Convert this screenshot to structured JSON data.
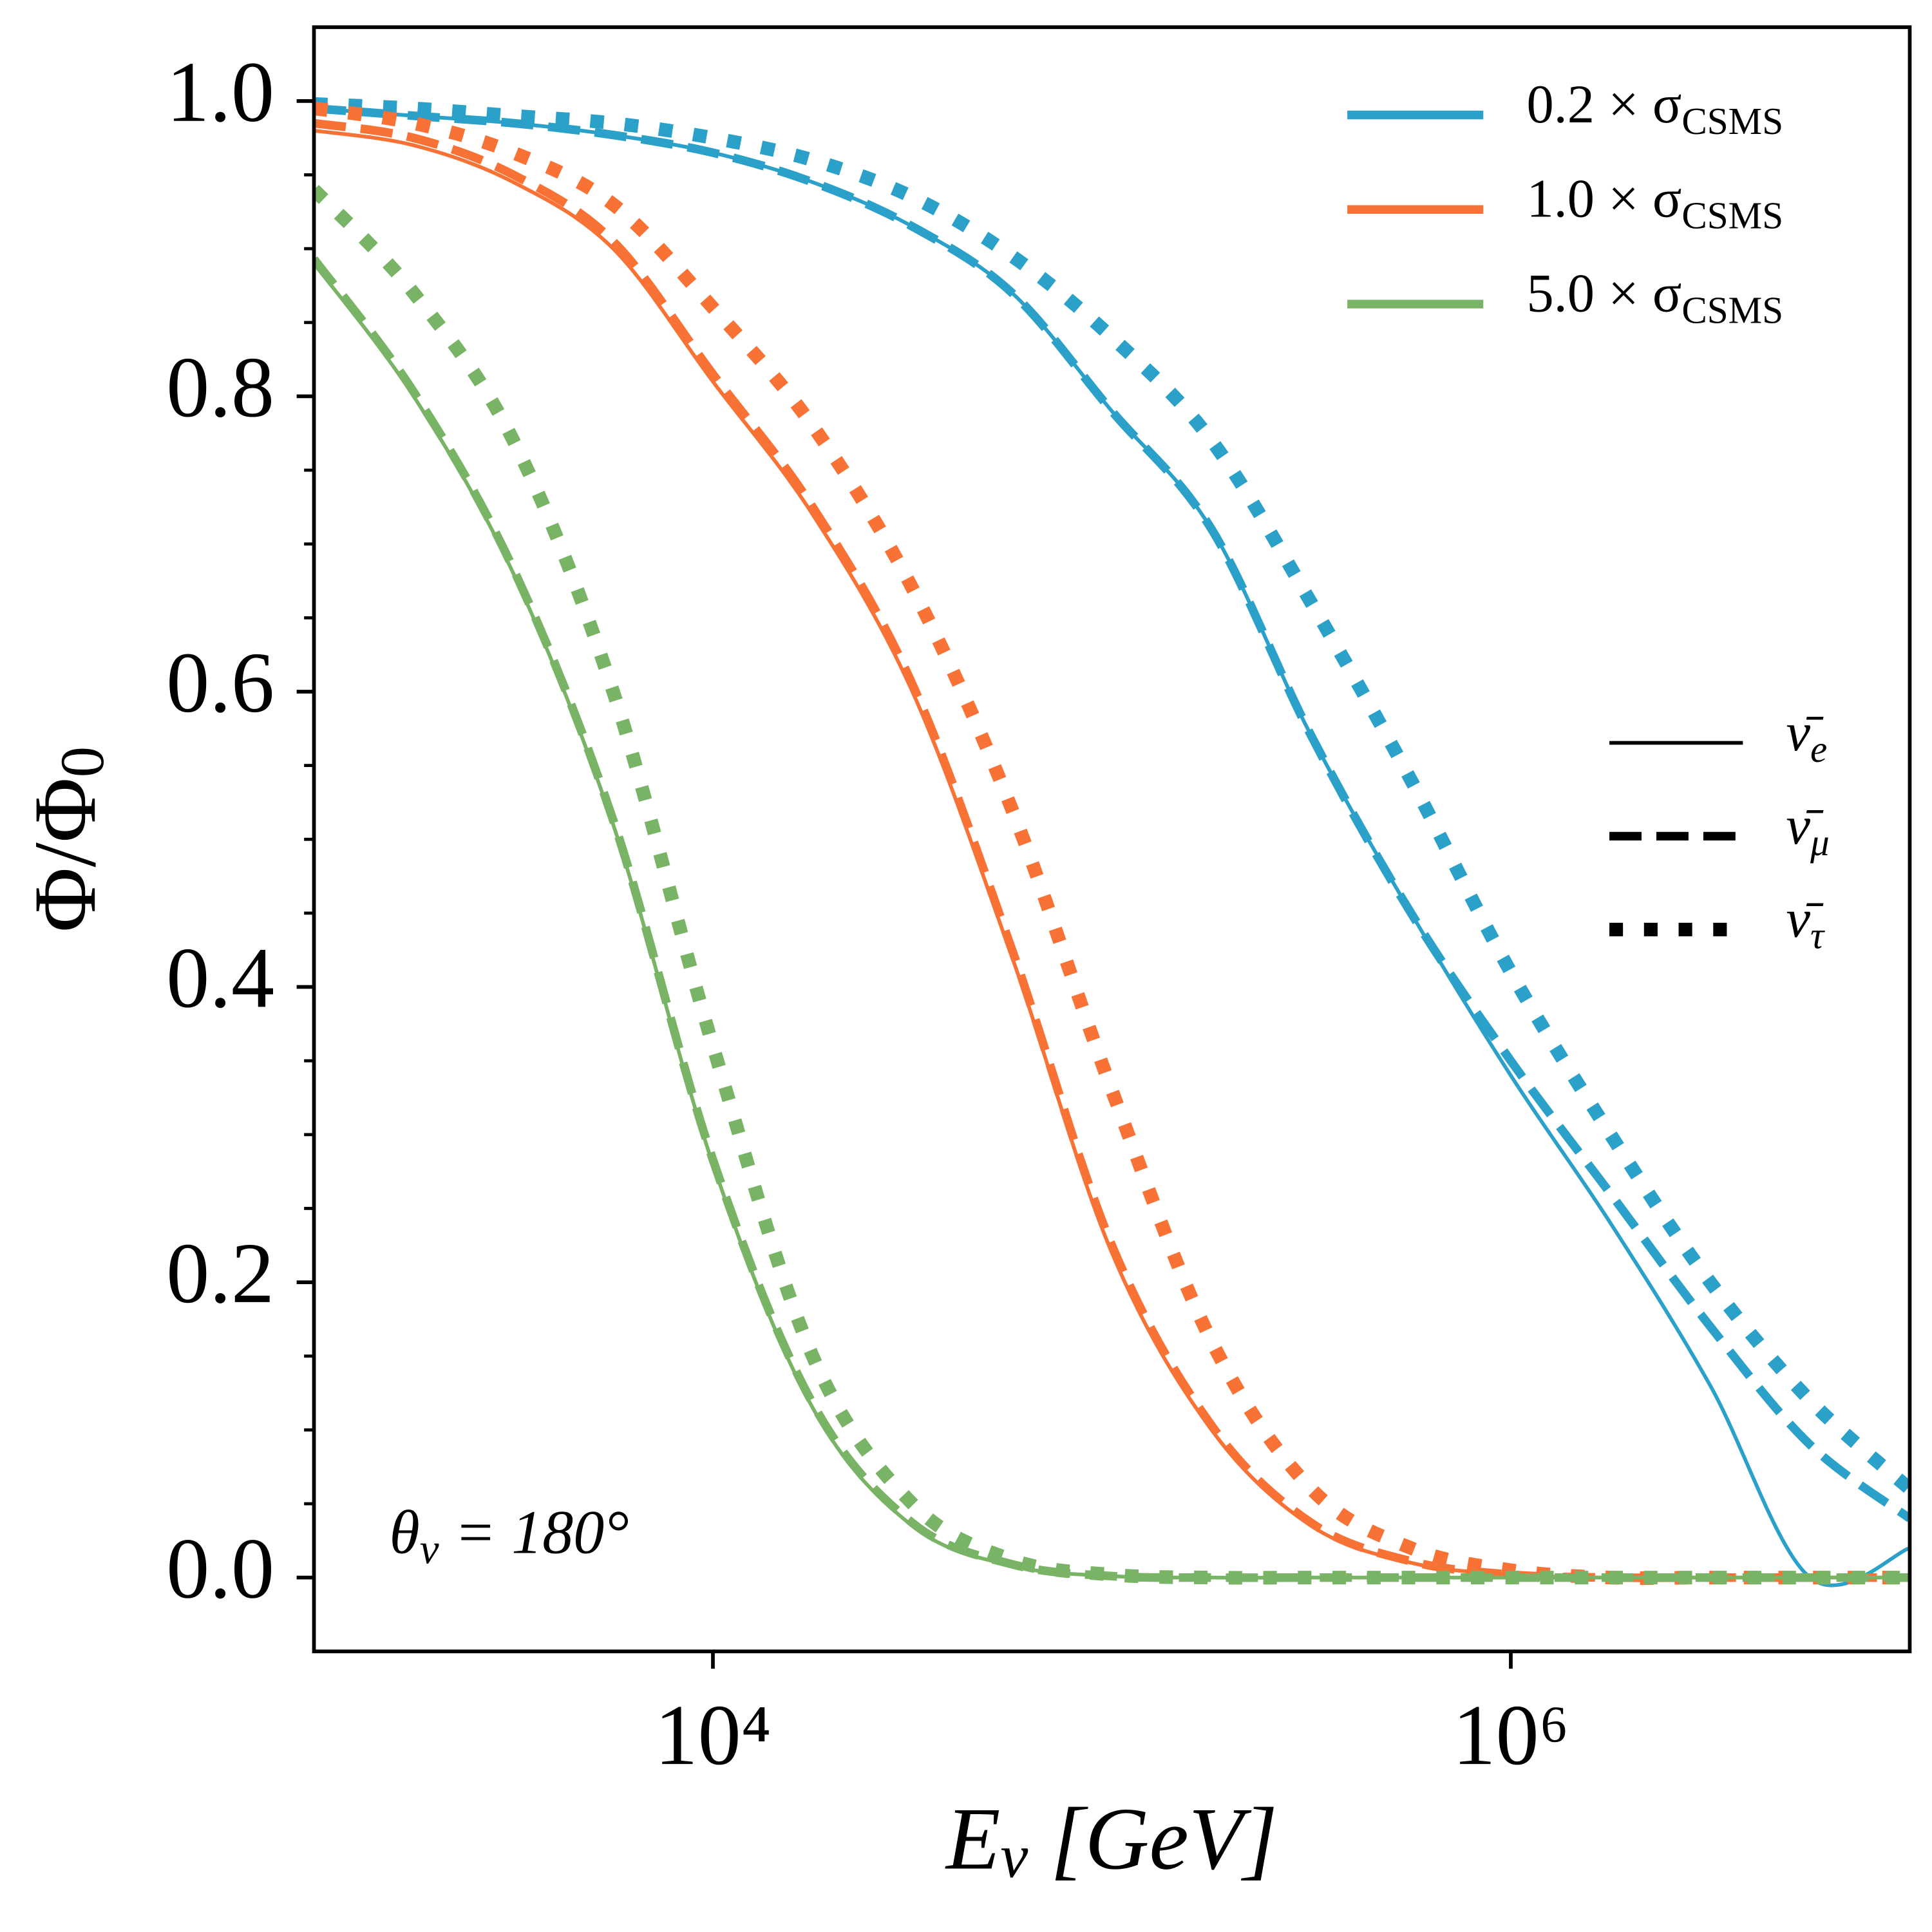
{
  "chart_data": {
    "type": "line",
    "x_label": [
      "E",
      "ν",
      " [GeV]"
    ],
    "y_label": [
      "Φ/Φ",
      "0"
    ],
    "annotation": [
      "θ",
      "ν",
      " = 180°"
    ],
    "xscale": "log",
    "xlim": [
      1000,
      10000000
    ],
    "xticks": [
      {
        "value": 10000,
        "label": "10⁴"
      },
      {
        "value": 1000000,
        "label": "10⁶"
      }
    ],
    "ylim": [
      -0.05,
      1.05
    ],
    "yticks": [
      {
        "value": 0,
        "label": "0.0"
      },
      0.2,
      0.4,
      0.6,
      0.8,
      {
        "value": 1,
        "label": "1.0"
      }
    ],
    "yminorticks": [
      0.05,
      0.1,
      0.15,
      0.25,
      0.3,
      0.35,
      0.45,
      0.5,
      0.55,
      0.65,
      0.7,
      0.75,
      0.85,
      0.9,
      0.95
    ],
    "x": [
      1000,
      1778,
      3162,
      5623,
      10000,
      17783,
      31623,
      56234,
      100000,
      177828,
      316228,
      562341,
      1000000,
      1778279,
      3162278,
      5623413,
      10000000
    ],
    "color_legend": [
      {
        "name": [
          "0.2 × σ",
          "CSMS"
        ],
        "color": "#2ba0c8"
      },
      {
        "name": [
          "1.0 × σ",
          "CSMS"
        ],
        "color": "#f87235"
      },
      {
        "name": [
          "5.0 × σ",
          "CSMS"
        ],
        "color": "#79b466"
      }
    ],
    "style_legend": [
      {
        "name": [
          "ν̄",
          "e"
        ],
        "linestyle": "solid"
      },
      {
        "name": [
          "ν̄",
          "μ"
        ],
        "linestyle": "dashed"
      },
      {
        "name": [
          "ν̄",
          "τ"
        ],
        "linestyle": "dotted"
      }
    ],
    "series": [
      {
        "color": "#2ba0c8",
        "linestyle": "dotted",
        "values": [
          0.998,
          0.995,
          0.99,
          0.985,
          0.975,
          0.96,
          0.935,
          0.895,
          0.84,
          0.77,
          0.66,
          0.54,
          0.41,
          0.3,
          0.2,
          0.12,
          0.06
        ]
      },
      {
        "color": "#2ba0c8",
        "linestyle": "dashed",
        "values": [
          0.995,
          0.99,
          0.985,
          0.977,
          0.965,
          0.945,
          0.915,
          0.87,
          0.79,
          0.71,
          0.57,
          0.45,
          0.35,
          0.26,
          0.17,
          0.09,
          0.04
        ]
      },
      {
        "color": "#2ba0c8",
        "linestyle": "solid",
        "values": [
          0.995,
          0.99,
          0.985,
          0.977,
          0.965,
          0.945,
          0.915,
          0.87,
          0.79,
          0.71,
          0.57,
          0.45,
          0.34,
          0.24,
          0.13,
          0.0,
          0.02
        ]
      },
      {
        "color": "#f87235",
        "linestyle": "dotted",
        "values": [
          0.995,
          0.985,
          0.965,
          0.93,
          0.86,
          0.78,
          0.67,
          0.52,
          0.33,
          0.16,
          0.06,
          0.02,
          0.005,
          0,
          0,
          0,
          0
        ]
      },
      {
        "color": "#f87235",
        "linestyle": "dashed",
        "values": [
          0.985,
          0.975,
          0.95,
          0.905,
          0.815,
          0.725,
          0.605,
          0.425,
          0.225,
          0.103,
          0.037,
          0.011,
          0.002,
          0,
          0,
          0,
          0
        ]
      },
      {
        "color": "#f87235",
        "linestyle": "solid",
        "values": [
          0.98,
          0.97,
          0.945,
          0.9,
          0.81,
          0.72,
          0.6,
          0.42,
          0.22,
          0.1,
          0.035,
          0.01,
          0.002,
          0,
          0,
          0,
          0
        ]
      },
      {
        "color": "#79b466",
        "linestyle": "dotted",
        "values": [
          0.94,
          0.87,
          0.77,
          0.6,
          0.36,
          0.15,
          0.05,
          0.012,
          0.002,
          0,
          0,
          0,
          0,
          0,
          0,
          0,
          0
        ]
      },
      {
        "color": "#79b466",
        "linestyle": "dashed",
        "values": [
          0.893,
          0.803,
          0.683,
          0.513,
          0.283,
          0.118,
          0.037,
          0.009,
          0.001,
          0,
          0,
          0,
          0,
          0,
          0,
          0,
          0
        ]
      },
      {
        "color": "#79b466",
        "linestyle": "solid",
        "values": [
          0.89,
          0.8,
          0.68,
          0.51,
          0.28,
          0.115,
          0.035,
          0.008,
          0.001,
          0,
          0,
          0,
          0,
          0,
          0,
          0,
          0
        ]
      }
    ]
  }
}
